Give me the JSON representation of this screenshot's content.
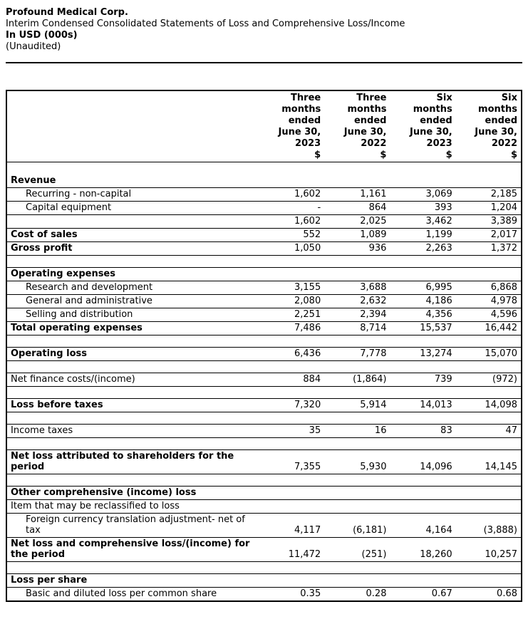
{
  "page": {
    "company": "Profound Medical Corp.",
    "statement_title": "Interim Condensed Consolidated Statements of Loss and Comprehensive Loss/Income",
    "currency_note": "In USD (000s)",
    "audit_note": "(Unaudited)"
  },
  "colors": {
    "text": "#000000",
    "border": "#000000",
    "background": "#ffffff"
  },
  "table": {
    "column_headers": [
      "Three\nmonths\nended\nJune 30,\n2023\n$",
      "Three\nmonths\nended\nJune 30,\n2022\n$",
      "Six\nmonths\nended\nJune 30,\n2023\n$",
      "Six\nmonths\nended\nJune 30,\n2022\n$"
    ],
    "rows": [
      {
        "name": "spacer-after-header",
        "style": "spacer",
        "border": false,
        "label": "",
        "values": [
          "",
          "",
          "",
          ""
        ]
      },
      {
        "name": "revenue-header",
        "style": "section",
        "border": true,
        "label": "Revenue",
        "values": [
          "",
          "",
          "",
          ""
        ]
      },
      {
        "name": "recurring-non-capital",
        "style": "item",
        "border": true,
        "label": "Recurring - non-capital",
        "values": [
          "1,602",
          "1,161",
          "3,069",
          "2,185"
        ]
      },
      {
        "name": "capital-equipment",
        "style": "item",
        "border": true,
        "label": "Capital equipment",
        "values": [
          "-",
          "864",
          "393",
          "1,204"
        ]
      },
      {
        "name": "total-revenue",
        "style": "plain",
        "border": true,
        "label": "",
        "values": [
          "1,602",
          "2,025",
          "3,462",
          "3,389"
        ]
      },
      {
        "name": "cost-of-sales",
        "style": "section",
        "border": true,
        "label": "Cost of sales",
        "values": [
          "552",
          "1,089",
          "1,199",
          "2,017"
        ]
      },
      {
        "name": "gross-profit",
        "style": "section",
        "border": true,
        "label": "Gross profit",
        "values": [
          "1,050",
          "936",
          "2,263",
          "1,372"
        ]
      },
      {
        "name": "spacer-1",
        "style": "spacer",
        "border": true,
        "label": "",
        "values": [
          "",
          "",
          "",
          ""
        ]
      },
      {
        "name": "operating-expenses-header",
        "style": "section",
        "border": true,
        "label": "Operating expenses",
        "values": [
          "",
          "",
          "",
          ""
        ]
      },
      {
        "name": "research-and-development",
        "style": "item",
        "border": true,
        "label": "Research and development",
        "values": [
          "3,155",
          "3,688",
          "6,995",
          "6,868"
        ]
      },
      {
        "name": "general-and-administrative",
        "style": "item",
        "border": true,
        "label": "General and administrative",
        "values": [
          "2,080",
          "2,632",
          "4,186",
          "4,978"
        ]
      },
      {
        "name": "selling-and-distribution",
        "style": "item",
        "border": true,
        "label": "Selling and distribution",
        "values": [
          "2,251",
          "2,394",
          "4,356",
          "4,596"
        ]
      },
      {
        "name": "total-operating-expenses",
        "style": "section",
        "border": true,
        "label": "Total operating expenses",
        "values": [
          "7,486",
          "8,714",
          "15,537",
          "16,442"
        ]
      },
      {
        "name": "spacer-2",
        "style": "spacer",
        "border": true,
        "label": "",
        "values": [
          "",
          "",
          "",
          ""
        ]
      },
      {
        "name": "operating-loss",
        "style": "section",
        "border": true,
        "label": "Operating loss",
        "values": [
          "6,436",
          "7,778",
          "13,274",
          "15,070"
        ]
      },
      {
        "name": "spacer-3",
        "style": "spacer",
        "border": true,
        "label": "",
        "values": [
          "",
          "",
          "",
          ""
        ]
      },
      {
        "name": "net-finance-costs",
        "style": "plain",
        "border": true,
        "label": "Net finance costs/(income)",
        "values": [
          "884",
          "(1,864)",
          "739",
          "(972)"
        ]
      },
      {
        "name": "spacer-4",
        "style": "spacer",
        "border": true,
        "label": "",
        "values": [
          "",
          "",
          "",
          ""
        ]
      },
      {
        "name": "loss-before-taxes",
        "style": "section",
        "border": true,
        "label": "Loss before taxes",
        "values": [
          "7,320",
          "5,914",
          "14,013",
          "14,098"
        ]
      },
      {
        "name": "spacer-5",
        "style": "spacer",
        "border": true,
        "label": "",
        "values": [
          "",
          "",
          "",
          ""
        ]
      },
      {
        "name": "income-taxes",
        "style": "plain",
        "border": true,
        "label": "Income taxes",
        "values": [
          "35",
          "16",
          "83",
          "47"
        ]
      },
      {
        "name": "spacer-6",
        "style": "spacer",
        "border": true,
        "label": "",
        "values": [
          "",
          "",
          "",
          ""
        ]
      },
      {
        "name": "net-loss-attributed-to-shareholders",
        "style": "section",
        "border": true,
        "label": "Net loss attributed to shareholders for the\nperiod",
        "values": [
          "7,355",
          "5,930",
          "14,096",
          "14,145"
        ]
      },
      {
        "name": "spacer-7",
        "style": "spacer",
        "border": true,
        "label": "",
        "values": [
          "",
          "",
          "",
          ""
        ]
      },
      {
        "name": "other-comprehensive-income-loss-header",
        "style": "section",
        "border": true,
        "label": "Other comprehensive (income) loss",
        "values": [
          "",
          "",
          "",
          ""
        ]
      },
      {
        "name": "item-reclassified-to-loss",
        "style": "plain",
        "border": true,
        "label": "Item that may be reclassified to loss",
        "values": [
          "",
          "",
          "",
          ""
        ]
      },
      {
        "name": "foreign-currency-translation-adjustment",
        "style": "item",
        "border": true,
        "label": "Foreign currency translation adjustment- net of\ntax",
        "values": [
          "4,117",
          "(6,181)",
          "4,164",
          "(3,888)"
        ]
      },
      {
        "name": "net-loss-and-comprehensive-loss",
        "style": "section",
        "border": true,
        "label": "Net loss and comprehensive loss/(income) for\nthe period",
        "values": [
          "11,472",
          "(251)",
          "18,260",
          "10,257"
        ]
      },
      {
        "name": "spacer-8",
        "style": "spacer",
        "border": true,
        "label": "",
        "values": [
          "",
          "",
          "",
          ""
        ]
      },
      {
        "name": "loss-per-share-header",
        "style": "section",
        "border": true,
        "label": "Loss per share",
        "values": [
          "",
          "",
          "",
          ""
        ]
      },
      {
        "name": "basic-and-diluted-loss-per-share",
        "style": "item",
        "border": true,
        "label": "Basic and diluted loss per common share",
        "values": [
          "0.35",
          "0.28",
          "0.67",
          "0.68"
        ]
      }
    ]
  }
}
